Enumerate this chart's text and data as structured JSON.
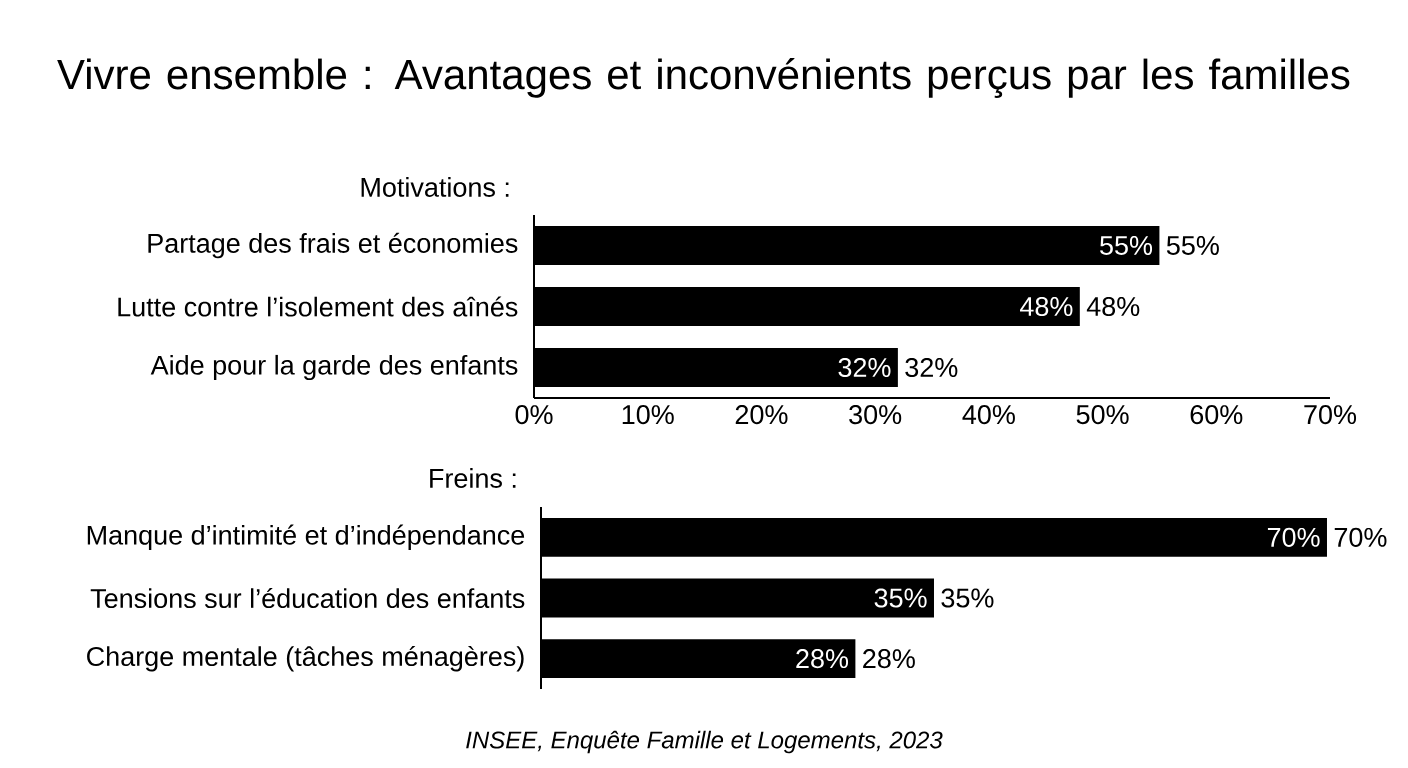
{
  "chart_data": [
    {
      "type": "bar",
      "orientation": "horizontal",
      "title": "Vivre ensemble : Avantages et inconvénients perçus par les familles",
      "subtitle": "Motivations :",
      "categories": [
        "Partage des frais et économies",
        "Lutte contre l’isolement des aînés",
        "Aide pour la garde des enfants"
      ],
      "values": [
        55,
        48,
        32
      ],
      "color": "#000000",
      "value_labels": [
        "55%",
        "48%",
        "32%"
      ],
      "xlim": [
        0,
        70
      ],
      "xticks": [
        {
          "value": 0,
          "label": "0%"
        },
        {
          "value": 10,
          "label": "10%"
        },
        {
          "value": 20,
          "label": "20%"
        },
        {
          "value": 30,
          "label": "30%"
        },
        {
          "value": 40,
          "label": "40%"
        },
        {
          "value": 50,
          "label": "50%"
        },
        {
          "value": 60,
          "label": "60%"
        },
        {
          "value": 70,
          "label": "70%"
        }
      ]
    },
    {
      "type": "bar",
      "orientation": "horizontal",
      "subtitle": "Freins :",
      "categories": [
        "Manque d’intimité et d’indépendance",
        "Tensions sur l’éducation des enfants",
        "Charge mentale (tâches ménagères)"
      ],
      "values": [
        70,
        35,
        28
      ],
      "color": "#000000",
      "value_labels": [
        "70%",
        "35%",
        "28%"
      ],
      "xlim": [
        0,
        70
      ],
      "tick_labels": "y",
      "annotations": [
        "INSEE, Enquête Famille et Logements, 2023"
      ]
    }
  ]
}
